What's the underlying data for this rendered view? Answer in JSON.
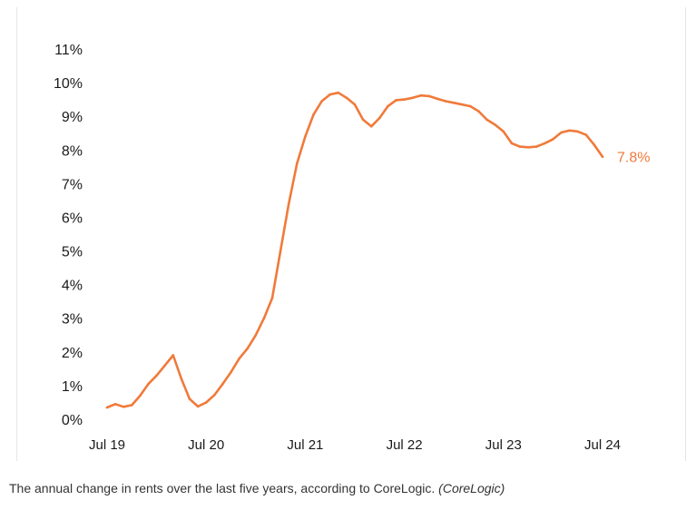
{
  "caption": {
    "text": "The annual change in rents over the last five years, according to CoreLogic.",
    "source": "(CoreLogic)"
  },
  "colors": {
    "line": "#f07a3a",
    "text": "#1a1a1a"
  },
  "chart_data": {
    "type": "line",
    "title": "",
    "xlabel": "",
    "ylabel": "",
    "ylim": [
      0,
      11
    ],
    "y_ticks": [
      {
        "value": 0,
        "label": "0%"
      },
      {
        "value": 1,
        "label": "1%"
      },
      {
        "value": 2,
        "label": "2%"
      },
      {
        "value": 3,
        "label": "3%"
      },
      {
        "value": 4,
        "label": "4%"
      },
      {
        "value": 5,
        "label": "5%"
      },
      {
        "value": 6,
        "label": "6%"
      },
      {
        "value": 7,
        "label": "7%"
      },
      {
        "value": 8,
        "label": "8%"
      },
      {
        "value": 9,
        "label": "9%"
      },
      {
        "value": 10,
        "label": "10%"
      },
      {
        "value": 11,
        "label": "11%"
      }
    ],
    "x_ticks": [
      {
        "x": "2019-07",
        "label": "Jul 19"
      },
      {
        "x": "2020-07",
        "label": "Jul 20"
      },
      {
        "x": "2021-07",
        "label": "Jul 21"
      },
      {
        "x": "2022-07",
        "label": "Jul 22"
      },
      {
        "x": "2023-07",
        "label": "Jul 23"
      },
      {
        "x": "2024-07",
        "label": "Jul 24"
      }
    ],
    "grid": false,
    "series": [
      {
        "x": [
          "2019-07",
          "2019-08",
          "2019-09",
          "2019-10",
          "2019-11",
          "2019-12",
          "2020-01",
          "2020-02",
          "2020-03",
          "2020-04",
          "2020-05",
          "2020-06",
          "2020-07",
          "2020-08",
          "2020-09",
          "2020-10",
          "2020-11",
          "2020-12",
          "2021-01",
          "2021-02",
          "2021-03",
          "2021-04",
          "2021-05",
          "2021-06",
          "2021-07",
          "2021-08",
          "2021-09",
          "2021-10",
          "2021-11",
          "2021-12",
          "2022-01",
          "2022-02",
          "2022-03",
          "2022-04",
          "2022-05",
          "2022-06",
          "2022-07",
          "2022-08",
          "2022-09",
          "2022-10",
          "2022-11",
          "2022-12",
          "2023-01",
          "2023-02",
          "2023-03",
          "2023-04",
          "2023-05",
          "2023-06",
          "2023-07",
          "2023-08",
          "2023-09",
          "2023-10",
          "2023-11",
          "2023-12",
          "2024-01",
          "2024-02",
          "2024-03",
          "2024-04",
          "2024-05",
          "2024-06",
          "2024-07"
        ],
        "values": [
          0.35,
          0.45,
          0.37,
          0.42,
          0.7,
          1.05,
          1.3,
          1.6,
          1.9,
          1.2,
          0.6,
          0.38,
          0.5,
          0.72,
          1.05,
          1.4,
          1.8,
          2.1,
          2.5,
          3.0,
          3.6,
          5.0,
          6.4,
          7.6,
          8.4,
          9.05,
          9.45,
          9.65,
          9.7,
          9.55,
          9.35,
          8.9,
          8.7,
          8.95,
          9.3,
          9.48,
          9.5,
          9.55,
          9.62,
          9.6,
          9.52,
          9.45,
          9.4,
          9.35,
          9.3,
          9.15,
          8.9,
          8.75,
          8.55,
          8.2,
          8.1,
          8.08,
          8.1,
          8.2,
          8.32,
          8.52,
          8.58,
          8.55,
          8.45,
          8.15,
          7.8
        ]
      }
    ],
    "end_label": "7.8%"
  }
}
